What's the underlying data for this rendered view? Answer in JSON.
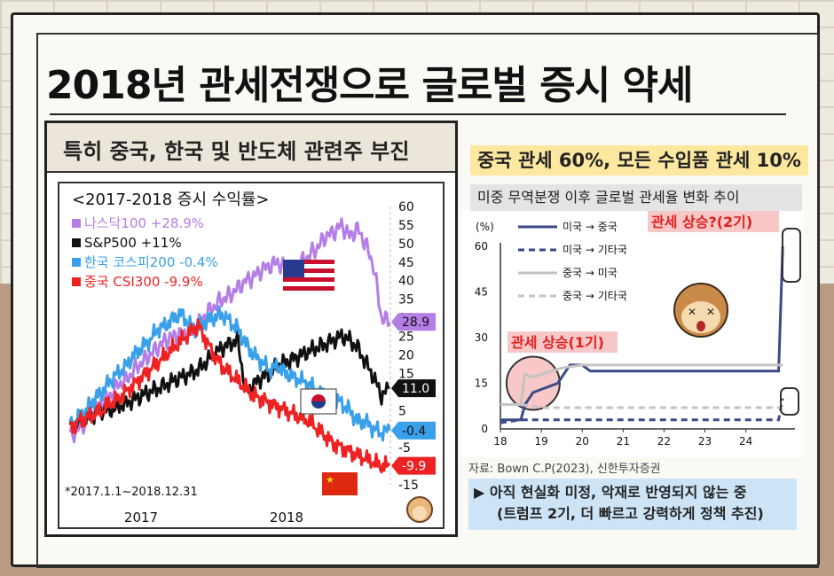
{
  "title": "2018년 관세전쟁으로 글로벌 증시 약세",
  "left_panel": {
    "header": "특히 중국, 한국 및 반도체 관련주 부진",
    "footnote": "*2017.1.1~2018.12.31"
  },
  "right_panel": {
    "subtitle": "중국 관세 60%, 모든 수입품 관세 10%",
    "chart_title": "미중 무역분쟁 이후 글로벌 관세율 변화 추이",
    "source": "자료: Bown C.P(2023), 신한투자증권",
    "note_line1": "▶ 아직 현실화 미정, 악재로 반영되지 않는 중",
    "note_line2": "(트럼프 2기, 더 빠르고 강력하게 정책 추진)"
  },
  "colors": {
    "nasdaq": "#b57ee6",
    "sp500": "#111111",
    "kospi": "#3aa0ea",
    "csi300": "#ee2222",
    "us_china": "#3b4a86",
    "us_other": "#3b4a86",
    "china_us": "#c3c3c3",
    "china_other": "#c3c3c3",
    "highlight": "#f8c8c8"
  },
  "chart_data": [
    {
      "type": "line",
      "title": "<2017-2018 증시 수익률>",
      "x_ticks": [
        "2017",
        "2018"
      ],
      "y_ticks": [
        60,
        55,
        50,
        45,
        40,
        35,
        30,
        25,
        20,
        15,
        10,
        5,
        0,
        -5,
        -10,
        -15
      ],
      "ylim": [
        -15,
        60
      ],
      "series": [
        {
          "name": "나스닥100 +28.9%",
          "key": "nasdaq",
          "end_label": "28.9",
          "values": [
            -2,
            0,
            2,
            5,
            7,
            9,
            12,
            13,
            16,
            18,
            20,
            22,
            24,
            25,
            26,
            25,
            28,
            31,
            33,
            35,
            36,
            38,
            40,
            41,
            43,
            44,
            45,
            43,
            42,
            45,
            47,
            49,
            52,
            53,
            55,
            52,
            54,
            50,
            44,
            30,
            28.9
          ]
        },
        {
          "name": "S&P500 +11%",
          "key": "sp500",
          "end_label": "11.0",
          "values": [
            0,
            2,
            3,
            4,
            5,
            5,
            6,
            7,
            8,
            9,
            10,
            11,
            12,
            13,
            14,
            15,
            16,
            18,
            20,
            22,
            23,
            24,
            10,
            12,
            14,
            15,
            17,
            18,
            19,
            20,
            21,
            22,
            23,
            24,
            25,
            24,
            22,
            18,
            14,
            9,
            11.0
          ]
        },
        {
          "name": "한국 코스피200 -0.4%",
          "key": "kospi",
          "end_label": "-0.4",
          "values": [
            1,
            3,
            5,
            8,
            10,
            13,
            15,
            17,
            20,
            22,
            24,
            27,
            28,
            30,
            31,
            28,
            27,
            29,
            30,
            31,
            29,
            27,
            23,
            20,
            18,
            16,
            17,
            15,
            14,
            13,
            12,
            10,
            9,
            8,
            7,
            5,
            2,
            2,
            0,
            -1,
            -0.4
          ]
        },
        {
          "name": "중국 CSI300 -9.9%",
          "key": "csi300",
          "end_label": "-9.9",
          "values": [
            0,
            2,
            3,
            4,
            5,
            7,
            8,
            10,
            12,
            14,
            16,
            18,
            20,
            22,
            24,
            26,
            28,
            24,
            20,
            17,
            15,
            13,
            11,
            9,
            8,
            7,
            6,
            5,
            4,
            3,
            2,
            0,
            -2,
            -4,
            -5,
            -6,
            -7,
            -8,
            -9,
            -10,
            -9.9
          ]
        }
      ]
    },
    {
      "type": "line",
      "ylabel": "(%)",
      "x_ticks": [
        "18",
        "19",
        "20",
        "21",
        "22",
        "23",
        "24"
      ],
      "y_ticks": [
        0,
        15,
        30,
        45,
        60
      ],
      "ylim": [
        0,
        60
      ],
      "xlim": [
        2018,
        2025.2
      ],
      "annotations": [
        "관세 상승(1기)",
        "관세 상승?(2기)"
      ],
      "series": [
        {
          "name": "미국 → 중국",
          "key": "us_china",
          "dashed": false,
          "points": [
            [
              2018,
              3
            ],
            [
              2018.5,
              3
            ],
            [
              2018.6,
              8
            ],
            [
              2018.8,
              12
            ],
            [
              2019.4,
              15
            ],
            [
              2019.7,
              21
            ],
            [
              2020,
              21
            ],
            [
              2020.2,
              19
            ],
            [
              2024.8,
              19
            ],
            [
              2024.9,
              60
            ]
          ]
        },
        {
          "name": "미국 → 기타국",
          "key": "us_other",
          "dashed": true,
          "points": [
            [
              2018,
              2
            ],
            [
              2018.5,
              3
            ],
            [
              2019,
              3
            ],
            [
              2024.8,
              3
            ],
            [
              2024.9,
              10
            ]
          ]
        },
        {
          "name": "중국 → 미국",
          "key": "china_us",
          "dashed": false,
          "points": [
            [
              2018,
              8
            ],
            [
              2018.5,
              8
            ],
            [
              2018.6,
              18
            ],
            [
              2018.8,
              17
            ],
            [
              2019,
              18
            ],
            [
              2019.5,
              20
            ],
            [
              2020,
              21
            ],
            [
              2024.9,
              21
            ]
          ]
        },
        {
          "name": "중국 → 기타국",
          "key": "china_other",
          "dashed": true,
          "points": [
            [
              2018,
              8
            ],
            [
              2018.5,
              8
            ],
            [
              2019,
              7
            ],
            [
              2024.9,
              7
            ]
          ]
        }
      ]
    }
  ]
}
